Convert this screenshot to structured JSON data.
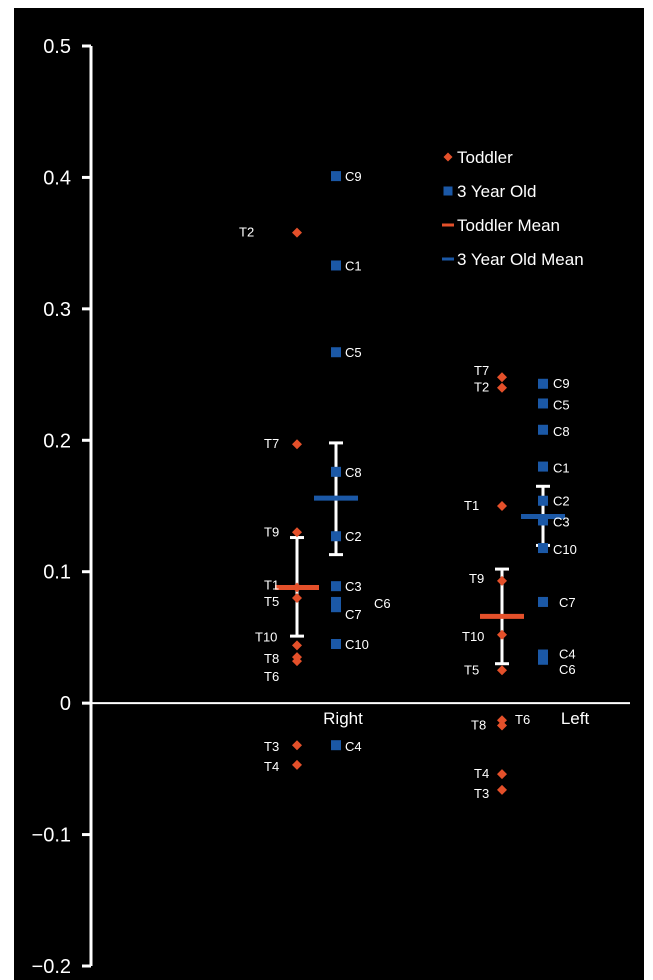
{
  "chart_data": {
    "type": "scatter",
    "title": "",
    "xlabel": "",
    "ylabel": "",
    "ylim": [
      -0.2,
      0.5
    ],
    "yticks": [
      -0.2,
      -0.1,
      0,
      0.1,
      0.2,
      0.3,
      0.4,
      0.5
    ],
    "ytick_labels": [
      "−0.2",
      "−0.1",
      "0",
      "0.1",
      "0.2",
      "0.3",
      "0.4",
      "0.5"
    ],
    "categories": [
      "Right",
      "Left"
    ],
    "legend_position": "top-right",
    "colors": {
      "toddler": "#e4502a",
      "three_year_old": "#1b58a6",
      "axis": "#ffffff",
      "background": "#000000"
    },
    "legend": [
      {
        "label": "Toddler",
        "marker": "diamond",
        "color": "#e4502a"
      },
      {
        "label": "3 Year Old",
        "marker": "square",
        "color": "#1b58a6"
      },
      {
        "label": "Toddler Mean",
        "marker": "dash",
        "color": "#e4502a"
      },
      {
        "label": "3 Year Old Mean",
        "marker": "dash",
        "color": "#1b58a6"
      }
    ],
    "series": [
      {
        "name": "Toddler",
        "marker": "diamond",
        "points": [
          {
            "category": "Right",
            "label": "T2",
            "y": 0.358
          },
          {
            "category": "Right",
            "label": "T7",
            "y": 0.197
          },
          {
            "category": "Right",
            "label": "T9",
            "y": 0.13
          },
          {
            "category": "Right",
            "label": "T1",
            "y": 0.088
          },
          {
            "category": "Right",
            "label": "T5",
            "y": 0.08
          },
          {
            "category": "Right",
            "label": "T10",
            "y": 0.044
          },
          {
            "category": "Right",
            "label": "T8",
            "y": 0.035
          },
          {
            "category": "Right",
            "label": "T6",
            "y": 0.032
          },
          {
            "category": "Right",
            "label": "T3",
            "y": -0.032
          },
          {
            "category": "Right",
            "label": "T4",
            "y": -0.047
          },
          {
            "category": "Left",
            "label": "T7",
            "y": 0.248
          },
          {
            "category": "Left",
            "label": "T2",
            "y": 0.24
          },
          {
            "category": "Left",
            "label": "T1",
            "y": 0.15
          },
          {
            "category": "Left",
            "label": "T9",
            "y": 0.093
          },
          {
            "category": "Left",
            "label": "T10",
            "y": 0.052
          },
          {
            "category": "Left",
            "label": "T5",
            "y": 0.025
          },
          {
            "category": "Left",
            "label": "T6",
            "y": -0.013
          },
          {
            "category": "Left",
            "label": "T8",
            "y": -0.017
          },
          {
            "category": "Left",
            "label": "T4",
            "y": -0.054
          },
          {
            "category": "Left",
            "label": "T3",
            "y": -0.066
          }
        ]
      },
      {
        "name": "3 Year Old",
        "marker": "square",
        "points": [
          {
            "category": "Right",
            "label": "C9",
            "y": 0.401
          },
          {
            "category": "Right",
            "label": "C1",
            "y": 0.333
          },
          {
            "category": "Right",
            "label": "C5",
            "y": 0.267
          },
          {
            "category": "Right",
            "label": "C8",
            "y": 0.176
          },
          {
            "category": "Right",
            "label": "C2",
            "y": 0.127
          },
          {
            "category": "Right",
            "label": "C3",
            "y": 0.089
          },
          {
            "category": "Right",
            "label": "C6",
            "y": 0.077
          },
          {
            "category": "Right",
            "label": "C7",
            "y": 0.073
          },
          {
            "category": "Right",
            "label": "C10",
            "y": 0.045
          },
          {
            "category": "Right",
            "label": "C4",
            "y": -0.032
          },
          {
            "category": "Left",
            "label": "C9",
            "y": 0.243
          },
          {
            "category": "Left",
            "label": "C5",
            "y": 0.228
          },
          {
            "category": "Left",
            "label": "C8",
            "y": 0.208
          },
          {
            "category": "Left",
            "label": "C1",
            "y": 0.18
          },
          {
            "category": "Left",
            "label": "C2",
            "y": 0.154
          },
          {
            "category": "Left",
            "label": "C3",
            "y": 0.139
          },
          {
            "category": "Left",
            "label": "C10",
            "y": 0.118
          },
          {
            "category": "Left",
            "label": "C7",
            "y": 0.077
          },
          {
            "category": "Left",
            "label": "C4",
            "y": 0.037
          },
          {
            "category": "Left",
            "label": "C6",
            "y": 0.033
          }
        ]
      }
    ],
    "means": [
      {
        "name": "Toddler Mean",
        "category": "Right",
        "y": 0.088,
        "err_low": 0.051,
        "err_high": 0.126
      },
      {
        "name": "3 Year Old Mean",
        "category": "Right",
        "y": 0.156,
        "err_low": 0.113,
        "err_high": 0.198
      },
      {
        "name": "Toddler Mean",
        "category": "Left",
        "y": 0.066,
        "err_low": 0.03,
        "err_high": 0.102
      },
      {
        "name": "3 Year Old Mean",
        "category": "Left",
        "y": 0.142,
        "err_low": 0.12,
        "err_high": 0.165
      }
    ]
  }
}
